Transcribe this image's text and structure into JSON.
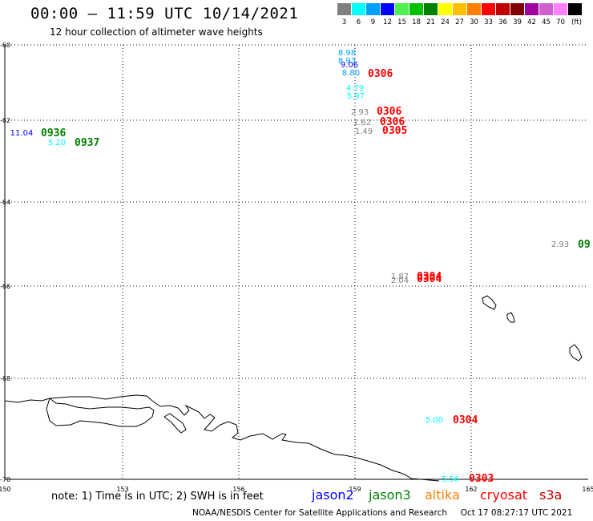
{
  "header": {
    "title": "00:00 – 11:59 UTC 10/14/2021",
    "subtitle": "12 hour collection of altimeter wave heights"
  },
  "color_scale": {
    "labels": [
      "3",
      "6",
      "9",
      "12",
      "15",
      "18",
      "21",
      "24",
      "27",
      "30",
      "33",
      "36",
      "39",
      "42",
      "45",
      "70",
      "(ft)"
    ],
    "colors": [
      "#808080",
      "#00ffff",
      "#00a0ff",
      "#0000ff",
      "#50f050",
      "#00c000",
      "#008000",
      "#ffff00",
      "#ffc000",
      "#ff8000",
      "#ff0000",
      "#c00000",
      "#800000",
      "#a000a0",
      "#d060d0",
      "#ff80ff",
      "#000000"
    ]
  },
  "map": {
    "lon_ticks": [
      "150",
      "153",
      "156",
      "159",
      "162",
      "165"
    ],
    "lat_ticks": [
      "-60",
      "-62",
      "-64",
      "-66",
      "-68",
      "-70"
    ],
    "observations": [
      {
        "swh": "8.98",
        "color": "#00a0ff"
      },
      {
        "swh": "8.93",
        "color": "#00a0ff"
      },
      {
        "swh": "9.06",
        "color": "#0000ff"
      },
      {
        "swh": "8.80",
        "color": "#00a0ff"
      },
      {
        "swh": "4.79",
        "color": "#00ffff"
      },
      {
        "swh": "5.97",
        "color": "#00ffff"
      },
      {
        "swh": "2.93",
        "color": "#808080"
      },
      {
        "swh": "1.62",
        "color": "#808080"
      },
      {
        "swh": "1.49",
        "color": "#808080"
      },
      {
        "swh": "11.04",
        "color": "#0000ff"
      },
      {
        "swh": "5.20",
        "color": "#00ffff"
      },
      {
        "swh": "2.93",
        "color": "#808080"
      },
      {
        "swh": "1.87",
        "color": "#808080"
      },
      {
        "swh": "2.04",
        "color": "#808080"
      },
      {
        "swh": "5.00",
        "color": "#00ffff"
      },
      {
        "swh": "5.56",
        "color": "#00ffff"
      }
    ],
    "pass_times": [
      {
        "time": "0306",
        "color": "#ff0000"
      },
      {
        "time": "0306",
        "color": "#ff0000"
      },
      {
        "time": "0306",
        "color": "#ff0000"
      },
      {
        "time": "0305",
        "color": "#ff0000"
      },
      {
        "time": "0936",
        "color": "#008000"
      },
      {
        "time": "0937",
        "color": "#008000"
      },
      {
        "time": "09",
        "color": "#008000"
      },
      {
        "time": "0304",
        "color": "#ff0000"
      },
      {
        "time": "0304",
        "color": "#ff0000"
      },
      {
        "time": "0304",
        "color": "#ff0000"
      },
      {
        "time": "0303",
        "color": "#ff0000"
      }
    ]
  },
  "footer": {
    "note": "note: 1) Time is in UTC; 2) SWH is in feet",
    "satellites": [
      {
        "name": "jason2",
        "color": "#0000ff"
      },
      {
        "name": "jason3",
        "color": "#008000"
      },
      {
        "name": "altika",
        "color": "#ff8000"
      },
      {
        "name": "cryosat",
        "color": "#ff0000"
      },
      {
        "name": "s3a",
        "color": "#c00000"
      }
    ],
    "credit": "NOAA/NESDIS Center for Satellite Applications and Research",
    "generated": "Oct 17 08:27:17 UTC 2021"
  }
}
